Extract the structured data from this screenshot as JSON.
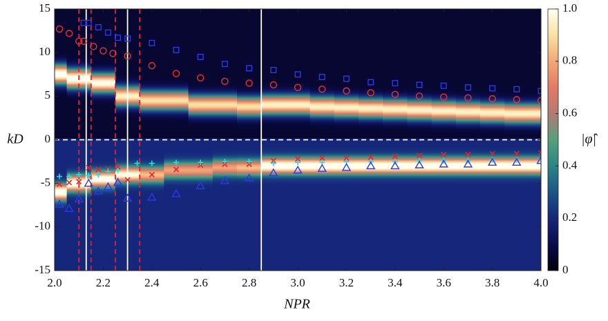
{
  "chart_data": {
    "type": "heatmap-scatter",
    "x_label": "NPR",
    "y_label": "kD",
    "colorbar_label": "|φ̂|",
    "xlim": [
      2.0,
      4.0
    ],
    "ylim": [
      -15,
      15
    ],
    "xticks": [
      {
        "value": 2.0,
        "label": "2.0"
      },
      2.2,
      2.4,
      2.6,
      2.8,
      {
        "value": 3.0,
        "label": "3.0"
      },
      3.2,
      3.4,
      3.6,
      3.8,
      {
        "value": 4.0,
        "label": "4.0"
      }
    ],
    "yticks": [
      -15,
      -10,
      -5,
      0,
      5,
      10,
      15
    ],
    "clim": [
      0,
      1
    ],
    "cticks": [
      0,
      0.2,
      0.4,
      0.6,
      0.8,
      {
        "value": 1.0,
        "label": "1.0"
      }
    ],
    "colormap": [
      "#00000c",
      "#0b0b4a",
      "#16267a",
      "#1b5587",
      "#2a8585",
      "#55a07c",
      "#b47a74",
      "#e27a66",
      "#f2a876",
      "#f8e2a2",
      "#fffff2"
    ],
    "heatmap": {
      "x": [
        2.0,
        2.1,
        2.2,
        2.3,
        2.4,
        2.5,
        2.6,
        2.7,
        2.8,
        2.9,
        3.0,
        3.1,
        3.2,
        3.3,
        3.4,
        3.5,
        3.6,
        3.7,
        3.8,
        3.9,
        4.0
      ],
      "upper_kd": [
        7.5,
        7.0,
        6.5,
        5.0,
        4.5,
        4.5,
        4.0,
        4.0,
        3.8,
        4.0,
        4.0,
        3.8,
        3.7,
        3.6,
        3.5,
        3.4,
        3.3,
        3.2,
        3.1,
        3.0,
        3.0
      ],
      "upper_peak": [
        1.0,
        1.0,
        0.95,
        0.9,
        0.85,
        0.85,
        0.85,
        0.85,
        0.85,
        0.9,
        0.9,
        0.9,
        0.9,
        0.9,
        0.9,
        0.9,
        0.9,
        0.9,
        0.9,
        0.9,
        0.9
      ],
      "lower_kd": [
        -6.0,
        -5.0,
        -4.5,
        -4.0,
        -4.0,
        -3.5,
        -3.5,
        -3.2,
        -3.2,
        -3.0,
        -3.0,
        -3.0,
        -3.0,
        -3.0,
        -3.0,
        -3.0,
        -3.0,
        -3.0,
        -3.0,
        -3.0,
        -3.0
      ],
      "lower_peak": [
        0.9,
        0.9,
        0.85,
        0.8,
        0.65,
        0.6,
        0.6,
        0.6,
        0.65,
        0.9,
        0.9,
        0.9,
        0.9,
        0.9,
        0.9,
        0.9,
        0.9,
        0.9,
        0.9,
        0.9,
        0.9
      ]
    },
    "hline": {
      "y": 0,
      "color": "#ffffff",
      "dashed": true
    },
    "vlines": [
      {
        "x": 2.13,
        "color": "#ffffff",
        "dashed": false
      },
      {
        "x": 2.3,
        "color": "#ffffff",
        "dashed": false
      },
      {
        "x": 2.85,
        "color": "#ffffff",
        "dashed": false
      },
      {
        "x": 2.1,
        "color": "#e8202a",
        "dashed": true
      },
      {
        "x": 2.15,
        "color": "#e8202a",
        "dashed": true
      },
      {
        "x": 2.25,
        "color": "#e8202a",
        "dashed": true
      },
      {
        "x": 2.35,
        "color": "#e8202a",
        "dashed": true
      }
    ],
    "series": [
      {
        "marker": "circle",
        "color": "#f0302a",
        "x": [
          2.02,
          2.06,
          2.1,
          2.12,
          2.16,
          2.2,
          2.24,
          2.3,
          2.4,
          2.5,
          2.6,
          2.7,
          2.8,
          2.9,
          3.0,
          3.1,
          3.2,
          3.3,
          3.4,
          3.5,
          3.6,
          3.7,
          3.8,
          3.9,
          4.0
        ],
        "values": [
          12.7,
          12.2,
          11.3,
          11.3,
          10.7,
          10.2,
          9.9,
          9.6,
          8.5,
          7.6,
          7.1,
          6.7,
          6.5,
          6.3,
          6.0,
          5.8,
          5.6,
          5.4,
          5.2,
          5.0,
          4.9,
          4.8,
          4.7,
          4.6,
          4.5
        ]
      },
      {
        "marker": "square",
        "color": "#2a3ae8",
        "x": [
          2.12,
          2.14,
          2.18,
          2.22,
          2.26,
          2.3,
          2.4,
          2.5,
          2.6,
          2.7,
          2.8,
          2.9,
          3.0,
          3.1,
          3.2,
          3.3,
          3.4,
          3.5,
          3.6,
          3.7,
          3.8,
          3.9,
          4.0
        ],
        "values": [
          13.4,
          13.4,
          12.9,
          12.3,
          11.7,
          11.6,
          11.1,
          10.3,
          9.5,
          8.7,
          8.2,
          8.0,
          7.5,
          7.2,
          7.0,
          6.6,
          6.5,
          6.3,
          6.2,
          6.0,
          5.9,
          5.8,
          5.6
        ]
      },
      {
        "marker": "x",
        "color": "#e8202a",
        "x": [
          2.02,
          2.06,
          2.1,
          2.14,
          2.18,
          2.22,
          2.26,
          2.3,
          2.4,
          2.5,
          2.6,
          2.7,
          2.8,
          2.9,
          3.0,
          3.1,
          3.2,
          3.3,
          3.4,
          3.5,
          3.6,
          3.7,
          3.8,
          3.9,
          4.0
        ],
        "values": [
          -5.1,
          -4.9,
          -4.8,
          -3.2,
          -3.4,
          -3.3,
          -3.1,
          -4.6,
          -4.0,
          -3.4,
          -2.9,
          -2.8,
          -2.8,
          -2.4,
          -2.2,
          -2.1,
          -2.1,
          -2.0,
          -1.9,
          -1.8,
          -1.7,
          -1.7,
          -1.6,
          -1.6,
          -1.5
        ]
      },
      {
        "marker": "plus",
        "color": "#30d8e0",
        "x": [
          2.02,
          2.06,
          2.1,
          2.14,
          2.18,
          2.22,
          2.26,
          2.34,
          2.4,
          2.5,
          2.6,
          2.7,
          2.8,
          2.9,
          3.0,
          3.1,
          3.2,
          3.3,
          3.4,
          3.5,
          3.6,
          3.7,
          3.8,
          3.9,
          4.0
        ],
        "values": [
          -4.2,
          -4.2,
          -4.0,
          -4.1,
          -4.0,
          -3.6,
          -3.5,
          -2.7,
          -2.7,
          -2.6,
          -2.6,
          -2.5,
          -2.5,
          -2.7,
          -2.6,
          -2.6,
          -2.5,
          -2.5,
          -2.5,
          -2.4,
          -2.4,
          -2.4,
          -2.3,
          -2.3,
          -2.2
        ]
      },
      {
        "marker": "triangle",
        "color": "#2a3ae8",
        "x": [
          2.02,
          2.06,
          2.1,
          2.14,
          2.18,
          2.22,
          2.26,
          2.3,
          2.4,
          2.5,
          2.6,
          2.7,
          2.8,
          2.9,
          3.0,
          3.1,
          3.2,
          3.3,
          3.4,
          3.5,
          3.6,
          3.7,
          3.8,
          3.9,
          4.0
        ],
        "values": [
          -7.4,
          -7.9,
          -6.8,
          -5.0,
          -5.9,
          -5.4,
          -4.9,
          -6.7,
          -6.6,
          -6.2,
          -5.3,
          -4.7,
          -4.4,
          -3.8,
          -3.5,
          -3.3,
          -3.2,
          -3.0,
          -3.0,
          -2.9,
          -2.8,
          -2.8,
          -2.6,
          -2.6,
          -2.4
        ]
      }
    ]
  }
}
